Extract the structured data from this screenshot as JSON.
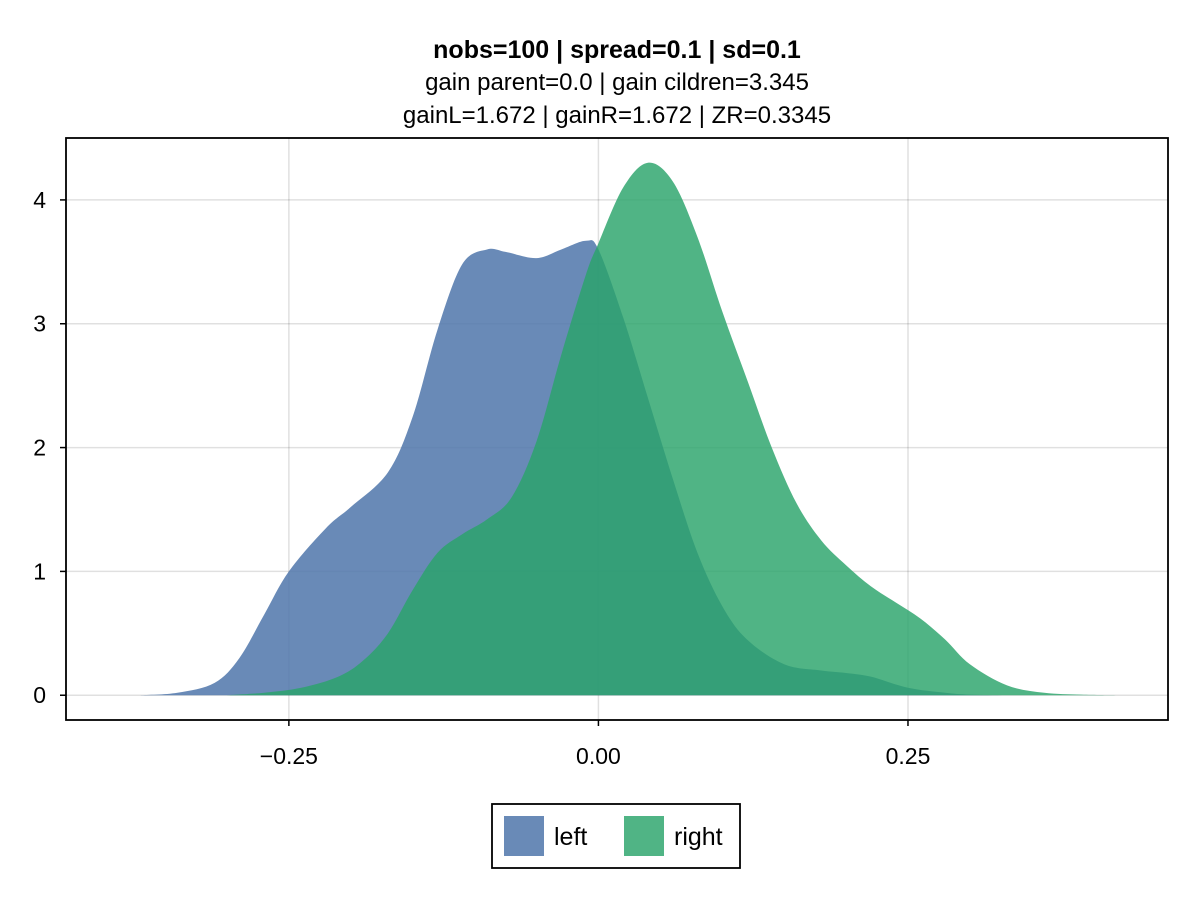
{
  "chart_data": {
    "type": "area",
    "title": "nobs=100 | spread=0.1 | sd=0.1",
    "subtitle_lines": [
      "gain parent=0.0 | gain cildren=3.345",
      "gainL=1.672 | gainR=1.672 | ZR=0.3345"
    ],
    "xlabel": "",
    "ylabel": "",
    "xlim": [
      -0.43,
      0.46
    ],
    "ylim": [
      -0.2,
      4.5
    ],
    "xticks": [
      -0.25,
      0.0,
      0.25
    ],
    "xtick_labels": [
      "−0.25",
      "0.00",
      "0.25"
    ],
    "yticks": [
      0,
      1,
      2,
      3,
      4
    ],
    "ytick_labels": [
      "0",
      "1",
      "2",
      "3",
      "4"
    ],
    "grid": true,
    "legend_position": "bottom-center",
    "series": [
      {
        "name": "left",
        "color": "#4f76aa",
        "opacity": 0.85,
        "x": [
          -0.37,
          -0.34,
          -0.31,
          -0.29,
          -0.27,
          -0.25,
          -0.22,
          -0.2,
          -0.17,
          -0.15,
          -0.13,
          -0.11,
          -0.09,
          -0.075,
          -0.05,
          -0.03,
          -0.01,
          0.0,
          0.02,
          0.04,
          0.06,
          0.08,
          0.1,
          0.12,
          0.15,
          0.18,
          0.2,
          0.22,
          0.25,
          0.28,
          0.3,
          0.33,
          0.36
        ],
        "y": [
          0.0,
          0.02,
          0.1,
          0.3,
          0.65,
          1.0,
          1.35,
          1.52,
          1.8,
          2.25,
          2.95,
          3.48,
          3.6,
          3.58,
          3.53,
          3.6,
          3.67,
          3.6,
          3.05,
          2.4,
          1.75,
          1.15,
          0.72,
          0.45,
          0.25,
          0.2,
          0.18,
          0.15,
          0.06,
          0.02,
          0.005,
          0.0,
          0.0
        ]
      },
      {
        "name": "right",
        "color": "#2aa46a",
        "opacity": 0.82,
        "x": [
          -0.3,
          -0.27,
          -0.24,
          -0.21,
          -0.19,
          -0.17,
          -0.15,
          -0.13,
          -0.11,
          -0.09,
          -0.07,
          -0.05,
          -0.03,
          -0.01,
          0.0,
          0.02,
          0.04,
          0.06,
          0.08,
          0.1,
          0.12,
          0.14,
          0.16,
          0.18,
          0.2,
          0.22,
          0.24,
          0.26,
          0.28,
          0.3,
          0.33,
          0.36,
          0.39,
          0.42
        ],
        "y": [
          0.0,
          0.02,
          0.06,
          0.15,
          0.28,
          0.5,
          0.85,
          1.15,
          1.3,
          1.42,
          1.6,
          2.05,
          2.75,
          3.4,
          3.65,
          4.1,
          4.3,
          4.15,
          3.7,
          3.1,
          2.55,
          2.0,
          1.55,
          1.25,
          1.05,
          0.88,
          0.75,
          0.62,
          0.45,
          0.25,
          0.08,
          0.02,
          0.005,
          0.0
        ]
      }
    ]
  }
}
